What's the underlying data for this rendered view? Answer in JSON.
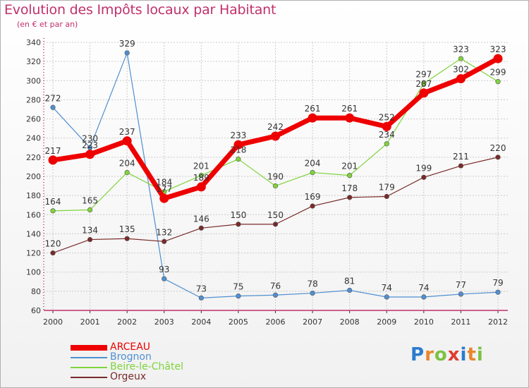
{
  "chart_data": {
    "type": "line",
    "title": "Evolution des Impôts locaux par Habitant",
    "subtitle": "(en € et par an)",
    "x": [
      "2000",
      "2001",
      "2002",
      "2003",
      "2004",
      "2005",
      "2006",
      "2007",
      "2008",
      "2009",
      "2010",
      "2011",
      "2012"
    ],
    "ylim": [
      60,
      340
    ],
    "yticks": [
      60,
      80,
      100,
      120,
      140,
      160,
      180,
      200,
      220,
      240,
      260,
      280,
      300,
      320,
      340
    ],
    "grid": true,
    "series": [
      {
        "name": "ARCEAU",
        "color": "#ee0000",
        "values": [
          217,
          223,
          237,
          177,
          189,
          233,
          242,
          261,
          261,
          252,
          287,
          302,
          323
        ],
        "labels": [
          "217",
          "223",
          "237",
          "177",
          "189",
          "233",
          "242",
          "261",
          "261",
          "252",
          "287",
          "302",
          "323"
        ]
      },
      {
        "name": "Brognon",
        "color": "#4f8fd1",
        "values": [
          272,
          230,
          329,
          93,
          73,
          75,
          76,
          78,
          81,
          74,
          74,
          77,
          79
        ],
        "labels": [
          "272",
          "230",
          "329",
          "93",
          "73",
          "75",
          "76",
          "78",
          "81",
          "74",
          "74",
          "77",
          "79"
        ]
      },
      {
        "name": "Beire-le-Châtel",
        "color": "#7ed43b",
        "values": [
          164,
          165,
          204,
          184,
          201,
          218,
          190,
          204,
          201,
          234,
          297,
          323,
          299
        ],
        "labels": [
          "164",
          "165",
          "204",
          "184",
          "201",
          "218",
          "190",
          "204",
          "201",
          "234",
          "297",
          "323",
          "299"
        ]
      },
      {
        "name": "Orgeux",
        "color": "#7a2a2a",
        "values": [
          120,
          134,
          135,
          132,
          146,
          150,
          150,
          169,
          178,
          179,
          199,
          211,
          220
        ],
        "labels": [
          "120",
          "134",
          "135",
          "132",
          "146",
          "150",
          "150",
          "169",
          "178",
          "179",
          "199",
          "211",
          "220"
        ]
      }
    ],
    "legend_position": "bottom-left"
  },
  "logo": {
    "letters": [
      "P",
      "r",
      "o",
      "x",
      "i",
      "t",
      "i"
    ],
    "colors": [
      "#2a7bd0",
      "#e8862b",
      "#7cc242",
      "#e23b2f",
      "#2a7bd0",
      "#e8862b",
      "#7cc242"
    ]
  },
  "colors": {
    "axis": "#c0306a",
    "grid": "#cccccc",
    "text": "#333333"
  }
}
